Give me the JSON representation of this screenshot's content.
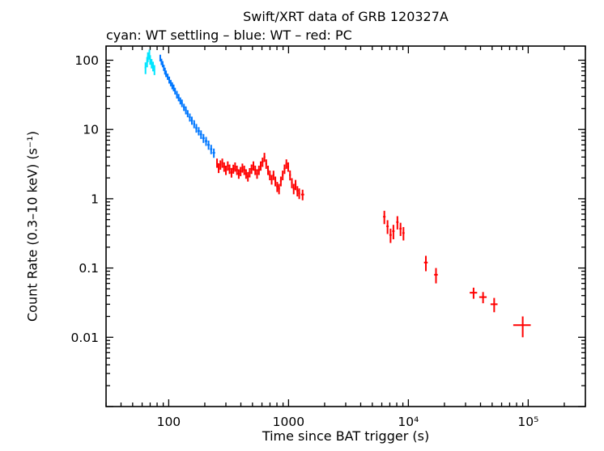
{
  "chart_data": {
    "type": "scatter",
    "title": "Swift/XRT data of GRB 120327A",
    "subtitle": "cyan: WT settling – blue: WT – red: PC",
    "xlabel": "Time since BAT trigger (s)",
    "ylabel": "Count Rate (0.3–10 keV) (s⁻¹)",
    "xscale": "log",
    "yscale": "log",
    "xlim": [
      30,
      300000
    ],
    "ylim": [
      0.001,
      160
    ],
    "grid": false,
    "legend_position": "subtitle",
    "point_format": "[time_s, time_err_s, count_rate, rate_err]",
    "xticks": [
      {
        "v": 100,
        "label": "100"
      },
      {
        "v": 1000,
        "label": "1000"
      },
      {
        "v": 10000,
        "label": "10⁴"
      },
      {
        "v": 100000,
        "label": "10⁵"
      }
    ],
    "yticks": [
      {
        "v": 0.01,
        "label": "0.01"
      },
      {
        "v": 0.1,
        "label": "0.1"
      },
      {
        "v": 1,
        "label": "1"
      },
      {
        "v": 10,
        "label": "10"
      },
      {
        "v": 100,
        "label": "100"
      }
    ],
    "series": [
      {
        "name": "WT settling",
        "color": "#00e5ff",
        "points": [
          [
            64,
            1,
            78,
            15
          ],
          [
            66,
            1,
            95,
            16
          ],
          [
            67,
            1,
            112,
            18
          ],
          [
            69,
            1,
            122,
            20
          ],
          [
            70,
            1,
            102,
            16
          ],
          [
            72,
            1,
            90,
            14
          ],
          [
            74,
            1,
            82,
            13
          ],
          [
            76,
            1,
            73,
            12
          ]
        ]
      },
      {
        "name": "WT",
        "color": "#0077ff",
        "points": [
          [
            85,
            1,
            108,
            12
          ],
          [
            87,
            1,
            95,
            10
          ],
          [
            89,
            1,
            88,
            9
          ],
          [
            91,
            1,
            78,
            8
          ],
          [
            93,
            1,
            70,
            8
          ],
          [
            95,
            1,
            64,
            7
          ],
          [
            98,
            1.5,
            58,
            6
          ],
          [
            101,
            1.5,
            52,
            6
          ],
          [
            104,
            1.5,
            47,
            5
          ],
          [
            107,
            1.5,
            43,
            5
          ],
          [
            110,
            1.5,
            40,
            4.5
          ],
          [
            113,
            1.5,
            36,
            4
          ],
          [
            117,
            2,
            32,
            4
          ],
          [
            121,
            2,
            29,
            3.5
          ],
          [
            125,
            2,
            26,
            3
          ],
          [
            129,
            2,
            24,
            3
          ],
          [
            134,
            2.5,
            21,
            2.5
          ],
          [
            139,
            2.5,
            19,
            2.5
          ],
          [
            144,
            2.5,
            17,
            2
          ],
          [
            150,
            3,
            15,
            2
          ],
          [
            156,
            3,
            13.5,
            1.8
          ],
          [
            163,
            3,
            12,
            1.6
          ],
          [
            170,
            3.5,
            10.5,
            1.5
          ],
          [
            178,
            4,
            9.5,
            1.3
          ],
          [
            186,
            4,
            8.5,
            1.2
          ],
          [
            195,
            4.5,
            7.5,
            1.1
          ],
          [
            205,
            5,
            6.8,
            1.0
          ],
          [
            215,
            5,
            6.0,
            0.9
          ],
          [
            226,
            5,
            5.2,
            0.8
          ],
          [
            238,
            6,
            4.6,
            0.7
          ]
        ]
      },
      {
        "name": "PC",
        "color": "#ff0000",
        "points": [
          [
            253,
            4,
            3.3,
            0.5
          ],
          [
            261,
            4,
            2.8,
            0.45
          ],
          [
            270,
            4,
            3.1,
            0.48
          ],
          [
            280,
            5,
            3.3,
            0.5
          ],
          [
            290,
            5,
            2.9,
            0.45
          ],
          [
            300,
            5,
            2.6,
            0.4
          ],
          [
            311,
            5,
            3.0,
            0.46
          ],
          [
            322,
            6,
            2.7,
            0.42
          ],
          [
            334,
            6,
            2.4,
            0.38
          ],
          [
            346,
            6,
            2.7,
            0.4
          ],
          [
            358,
            6,
            2.9,
            0.44
          ],
          [
            371,
            7,
            2.6,
            0.4
          ],
          [
            384,
            7,
            2.3,
            0.36
          ],
          [
            398,
            7,
            2.5,
            0.38
          ],
          [
            412,
            7,
            2.8,
            0.42
          ],
          [
            427,
            8,
            2.6,
            0.4
          ],
          [
            442,
            8,
            2.3,
            0.36
          ],
          [
            458,
            8,
            2.1,
            0.33
          ],
          [
            474,
            8,
            2.4,
            0.37
          ],
          [
            491,
            9,
            2.7,
            0.42
          ],
          [
            509,
            9,
            3.0,
            0.46
          ],
          [
            527,
            9,
            2.6,
            0.4
          ],
          [
            546,
            10,
            2.3,
            0.36
          ],
          [
            566,
            10,
            2.6,
            0.4
          ],
          [
            586,
            10,
            3.0,
            0.46
          ],
          [
            607,
            11,
            3.4,
            0.52
          ],
          [
            629,
            11,
            4.0,
            0.6
          ],
          [
            651,
            11,
            3.2,
            0.5
          ],
          [
            674,
            12,
            2.6,
            0.4
          ],
          [
            698,
            12,
            2.2,
            0.35
          ],
          [
            723,
            12,
            1.9,
            0.3
          ],
          [
            749,
            13,
            2.2,
            0.34
          ],
          [
            776,
            13,
            1.8,
            0.29
          ],
          [
            804,
            14,
            1.5,
            0.25
          ],
          [
            833,
            14,
            1.4,
            0.24
          ],
          [
            863,
            15,
            1.8,
            0.29
          ],
          [
            894,
            15,
            2.2,
            0.35
          ],
          [
            926,
            16,
            2.7,
            0.42
          ],
          [
            959,
            16,
            3.2,
            0.5
          ],
          [
            993,
            17,
            2.9,
            0.45
          ],
          [
            1029,
            18,
            2.2,
            0.36
          ],
          [
            1066,
            18,
            1.7,
            0.28
          ],
          [
            1104,
            19,
            1.4,
            0.24
          ],
          [
            1144,
            20,
            1.6,
            0.27
          ],
          [
            1185,
            21,
            1.3,
            0.22
          ],
          [
            1228,
            22,
            1.2,
            0.21
          ],
          [
            1310,
            40,
            1.15,
            0.2
          ],
          [
            6300,
            150,
            0.55,
            0.12
          ],
          [
            6700,
            150,
            0.4,
            0.09
          ],
          [
            7100,
            160,
            0.3,
            0.07
          ],
          [
            7500,
            170,
            0.34,
            0.08
          ],
          [
            8100,
            180,
            0.46,
            0.1
          ],
          [
            8600,
            190,
            0.37,
            0.08
          ],
          [
            9100,
            200,
            0.32,
            0.07
          ],
          [
            14000,
            500,
            0.12,
            0.03
          ],
          [
            17000,
            600,
            0.08,
            0.02
          ],
          [
            35000,
            2500,
            0.044,
            0.008
          ],
          [
            42000,
            3000,
            0.038,
            0.007
          ],
          [
            52000,
            3500,
            0.03,
            0.007
          ],
          [
            90000,
            15000,
            0.015,
            0.005
          ]
        ]
      }
    ]
  }
}
